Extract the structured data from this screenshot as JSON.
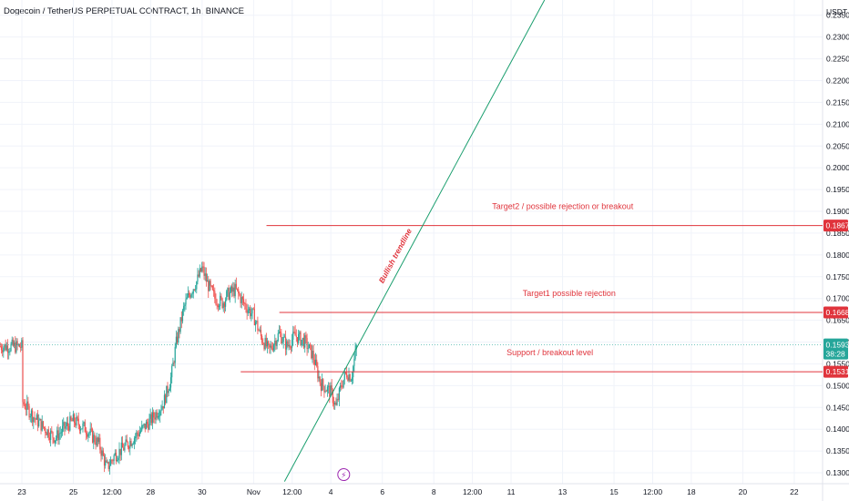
{
  "header": {
    "title": "Dogecoin / TetherUS PERPETUAL CONTRACT, 1h, BINANCE",
    "currency": "USDT"
  },
  "colors": {
    "up": "#26a69a",
    "down": "#ef5350",
    "level_line": "#e0343c",
    "trendline": "#1a9e6e",
    "price_line": "#26a69a",
    "grid": "#f0f3fa",
    "event_icon": "#9c27b0"
  },
  "event_icon": {
    "name": "lightning-icon",
    "glyph": "⚡"
  },
  "chart_data": {
    "type": "candlestick",
    "ylim": [
      0.1275,
      0.2385
    ],
    "y_ticks": [
      0.235,
      0.23,
      0.225,
      0.22,
      0.215,
      0.21,
      0.205,
      0.2,
      0.195,
      0.19,
      0.185,
      0.18,
      0.175,
      0.17,
      0.165,
      0.16,
      0.155,
      0.15,
      0.145,
      0.14,
      0.135,
      0.13
    ],
    "y_tick_labels": [
      "0.23500",
      "0.23000",
      "0.22500",
      "0.22000",
      "0.21500",
      "0.21000",
      "0.20500",
      "0.20000",
      "0.19500",
      "0.19000",
      "0.18500",
      "0.18000",
      "0.17500",
      "0.17000",
      "0.16500",
      "0.16000",
      "0.15500",
      "0.15000",
      "0.14500",
      "0.14000",
      "0.13500",
      "0.13000"
    ],
    "x_ticks": [
      {
        "label": "23",
        "day": 0
      },
      {
        "label": "25",
        "day": 2
      },
      {
        "label": "12:00",
        "day": 3.5
      },
      {
        "label": "28",
        "day": 5
      },
      {
        "label": "30",
        "day": 7
      },
      {
        "label": "Nov",
        "day": 9
      },
      {
        "label": "12:00",
        "day": 10.5
      },
      {
        "label": "4",
        "day": 12
      },
      {
        "label": "6",
        "day": 14
      },
      {
        "label": "8",
        "day": 16
      },
      {
        "label": "12:00",
        "day": 17.5
      },
      {
        "label": "11",
        "day": 19
      },
      {
        "label": "13",
        "day": 21
      },
      {
        "label": "15",
        "day": 23
      },
      {
        "label": "12:00",
        "day": 24.5
      },
      {
        "label": "18",
        "day": 26
      },
      {
        "label": "20",
        "day": 28
      },
      {
        "label": "22",
        "day": 30
      }
    ],
    "x_range_days": [
      -0.85,
      31.1
    ],
    "closes_anchor": [
      [
        0,
        0.1465
      ],
      [
        0.5,
        0.1425
      ],
      [
        1.0,
        0.1395
      ],
      [
        1.3,
        0.138
      ],
      [
        1.6,
        0.14
      ],
      [
        2.0,
        0.142
      ],
      [
        2.5,
        0.14
      ],
      [
        3.0,
        0.1365
      ],
      [
        3.3,
        0.131
      ],
      [
        3.6,
        0.134
      ],
      [
        4.0,
        0.136
      ],
      [
        4.5,
        0.139
      ],
      [
        5.0,
        0.142
      ],
      [
        5.5,
        0.146
      ],
      [
        5.8,
        0.152
      ],
      [
        6.0,
        0.16
      ],
      [
        6.3,
        0.168
      ],
      [
        6.5,
        0.171
      ],
      [
        6.8,
        0.174
      ],
      [
        7.0,
        0.177
      ],
      [
        7.2,
        0.1735
      ],
      [
        7.5,
        0.17
      ],
      [
        7.8,
        0.169
      ],
      [
        8.0,
        0.171
      ],
      [
        8.3,
        0.172
      ],
      [
        8.6,
        0.169
      ],
      [
        9.0,
        0.166
      ],
      [
        9.3,
        0.161
      ],
      [
        9.6,
        0.158
      ],
      [
        10.0,
        0.162
      ],
      [
        10.3,
        0.159
      ],
      [
        10.6,
        0.1615
      ],
      [
        11.0,
        0.16
      ],
      [
        11.3,
        0.157
      ],
      [
        11.6,
        0.1505
      ],
      [
        12.0,
        0.1485
      ],
      [
        12.2,
        0.145
      ],
      [
        12.4,
        0.15
      ],
      [
        12.6,
        0.153
      ],
      [
        12.8,
        0.152
      ],
      [
        13.0,
        0.159
      ]
    ],
    "last_price": 0.15934,
    "last_price_label": "0.15934",
    "countdown": "38:28",
    "levels": [
      {
        "price": 0.18674,
        "label": "0.18674",
        "text": "Target2  / possible rejection or breakout",
        "start_day": 9.5
      },
      {
        "price": 0.1668,
        "label": "0.16680",
        "text": "Target1 possible rejection",
        "start_day": 10.0
      },
      {
        "price": 0.15319,
        "label": "0.15319",
        "text": "Support  / breakout level",
        "start_day": 8.5
      }
    ],
    "trendline": {
      "p1": [
        10.2,
        0.128
      ],
      "p2": [
        20.3,
        0.2385
      ],
      "label": "Bullish trendline"
    },
    "xlabel": "",
    "ylabel": "",
    "grid": true
  }
}
